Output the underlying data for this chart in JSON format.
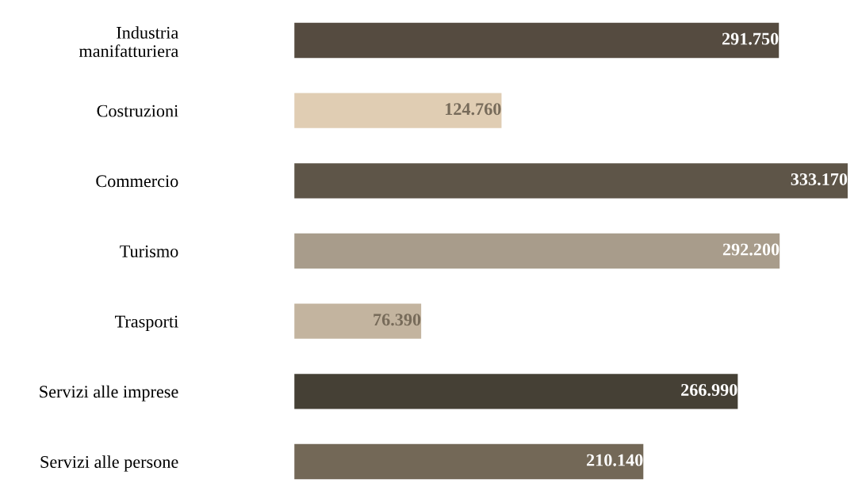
{
  "chart_data": {
    "type": "bar",
    "orientation": "horizontal",
    "categories": [
      "Industria\nmanifatturiera",
      "Costruzioni",
      "Commercio",
      "Turismo",
      "Trasporti",
      "Servizi alle imprese",
      "Servizi alle persone"
    ],
    "values": [
      291750,
      124760,
      333170,
      292200,
      76390,
      266990,
      210140
    ],
    "value_labels": [
      "291.750",
      "124.760",
      "333.170",
      "292.200",
      "76.390",
      "266.990",
      "210.140"
    ],
    "colors": [
      "#554b40",
      "#e0cdb3",
      "#5e5548",
      "#a89c8b",
      "#c3b49f",
      "#454035",
      "#736857"
    ],
    "grid": false,
    "legend": false,
    "tick_labels": "y"
  }
}
